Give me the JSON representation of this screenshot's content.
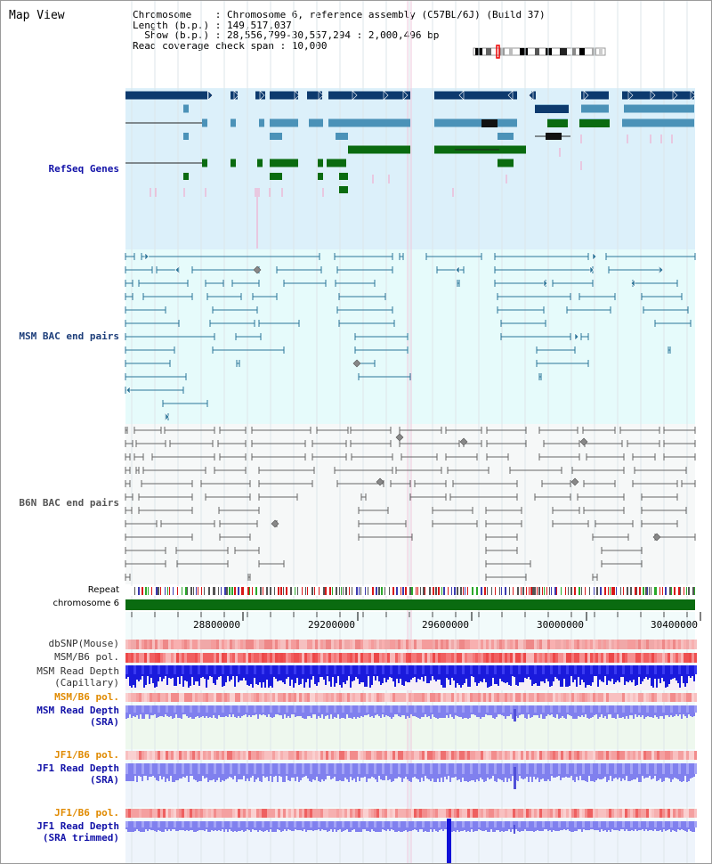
{
  "view": {
    "title": "Map View",
    "info_lines": [
      "Chromosome    : Chromosome 6, reference assembly (C57BL/6J) (Build 37)",
      "Length (b.p.) : 149,517,037",
      "  Show (b.p.) : 28,556,799-30,557,294 : 2,000,496 bp",
      "Read coverage check span : 10,000"
    ]
  },
  "tracks": {
    "refseq": "RefSeq Genes",
    "msm_bac": "MSM BAC end pairs",
    "b6n_bac": "B6N BAC end pairs",
    "repeat": "Repeat",
    "chromosome": "chromosome 6",
    "dbsnp": "dbSNP(Mouse)",
    "msm_b6_pol": "MSM/B6 pol.",
    "msm_read_cap": "MSM Read Depth\n(Capillary)",
    "msm_b6_pol2": "MSM/B6 pol.",
    "msm_read_sra": "MSM Read Depth\n(SRA)",
    "jf1_b6_pol": "JF1/B6 pol.",
    "jf1_read_sra": "JF1 Read Depth\n(SRA)",
    "jf1_b6_pol2": "JF1/B6 pol.",
    "jf1_read_trim": "JF1 Read Depth\n(SRA trimmed)"
  },
  "axis": {
    "ticks": [
      "28800000",
      "29200000",
      "29600000",
      "30000000",
      "30400000"
    ]
  },
  "colors": {
    "refseq_bg": "#dcf0fa",
    "msm_bg": "#e6fbfb",
    "b6n_bg": "#f6f8f8",
    "gene_dark": "#0d3a6e",
    "gene_mid": "#4b92b8",
    "gene_green": "#0a6b10",
    "msm_pair": "#2a7598",
    "b6n_pair": "#666666",
    "chrom_bar": "#0a6b10",
    "depth_blue": "#1a1adc",
    "depth_violet": "#8080ee"
  }
}
